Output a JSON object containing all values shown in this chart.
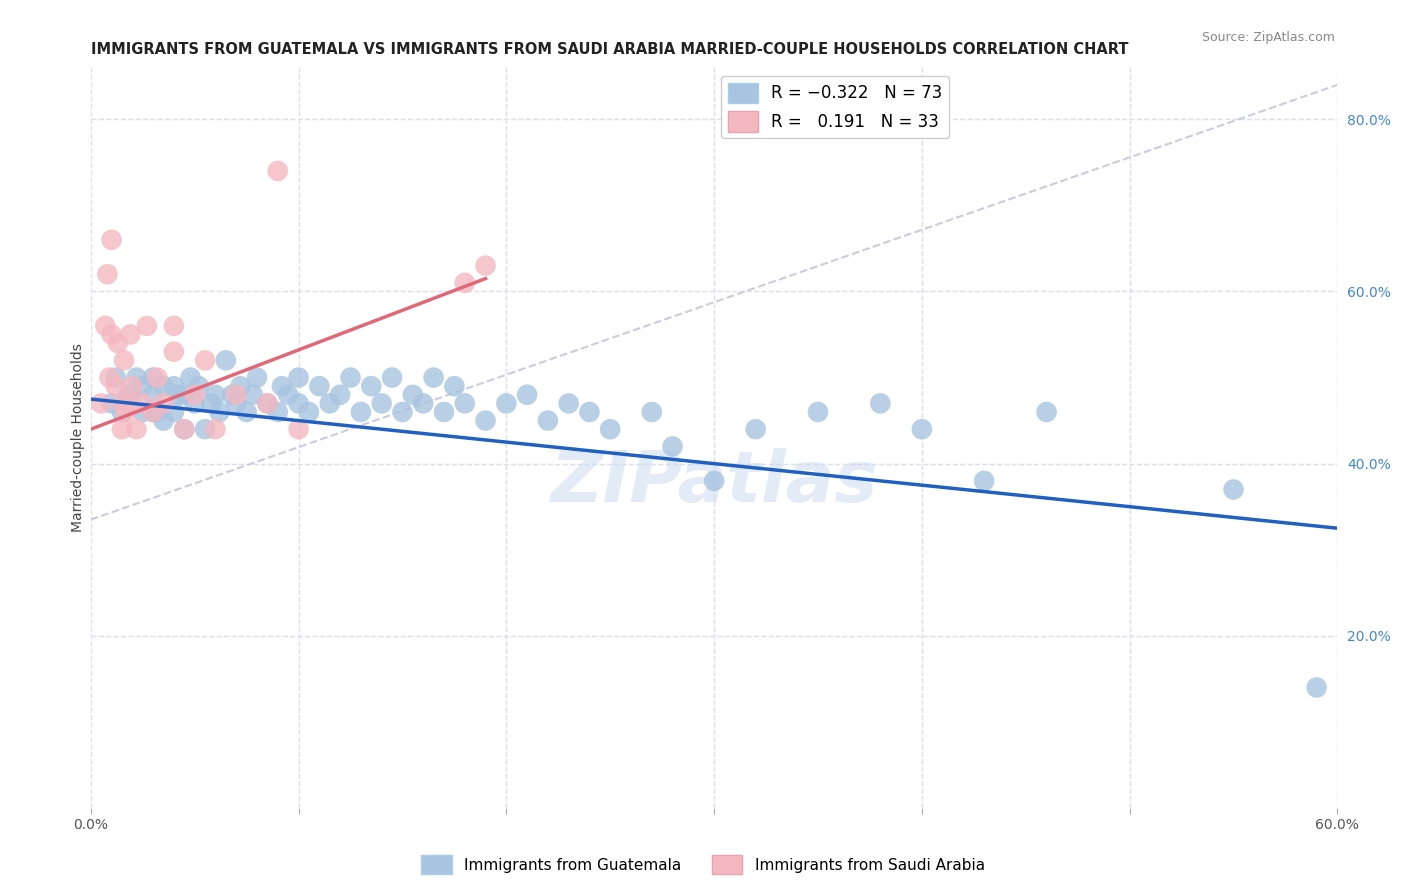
{
  "title": "IMMIGRANTS FROM GUATEMALA VS IMMIGRANTS FROM SAUDI ARABIA MARRIED-COUPLE HOUSEHOLDS CORRELATION CHART",
  "source": "Source: ZipAtlas.com",
  "ylabel": "Married-couple Households",
  "xlim": [
    0.0,
    0.6
  ],
  "ylim": [
    0.0,
    0.86
  ],
  "xticks": [
    0.0,
    0.1,
    0.2,
    0.3,
    0.4,
    0.5,
    0.6
  ],
  "xticklabels": [
    "0.0%",
    "",
    "",
    "",
    "",
    "",
    "60.0%"
  ],
  "yticks_right": [
    0.2,
    0.4,
    0.6,
    0.8
  ],
  "ytick_right_labels": [
    "20.0%",
    "40.0%",
    "60.0%",
    "80.0%"
  ],
  "blue_color": "#a8c4e0",
  "pink_color": "#f4b8c1",
  "blue_line_color": "#2060c0",
  "pink_line_color": "#e06878",
  "diag_line_color": "#ccccdd",
  "background_color": "#ffffff",
  "grid_color": "#ddddee",
  "blue_line_x0": 0.0,
  "blue_line_y0": 0.475,
  "blue_line_x1": 0.6,
  "blue_line_y1": 0.325,
  "pink_line_x0": 0.0,
  "pink_line_y0": 0.44,
  "pink_line_x1": 0.19,
  "pink_line_y1": 0.615,
  "diag_line_x0": 0.0,
  "diag_line_y0": 0.335,
  "diag_line_x1": 0.6,
  "diag_line_y1": 0.84,
  "guatemala_x": [
    0.01,
    0.012,
    0.015,
    0.018,
    0.02,
    0.022,
    0.025,
    0.025,
    0.03,
    0.03,
    0.03,
    0.032,
    0.035,
    0.035,
    0.04,
    0.04,
    0.042,
    0.045,
    0.045,
    0.048,
    0.05,
    0.052,
    0.055,
    0.058,
    0.06,
    0.062,
    0.065,
    0.068,
    0.07,
    0.072,
    0.075,
    0.078,
    0.08,
    0.085,
    0.09,
    0.092,
    0.095,
    0.1,
    0.1,
    0.105,
    0.11,
    0.115,
    0.12,
    0.125,
    0.13,
    0.135,
    0.14,
    0.145,
    0.15,
    0.155,
    0.16,
    0.165,
    0.17,
    0.175,
    0.18,
    0.19,
    0.2,
    0.21,
    0.22,
    0.23,
    0.24,
    0.25,
    0.27,
    0.28,
    0.3,
    0.32,
    0.35,
    0.38,
    0.4,
    0.43,
    0.46,
    0.55,
    0.59
  ],
  "guatemala_y": [
    0.47,
    0.5,
    0.46,
    0.48,
    0.48,
    0.5,
    0.46,
    0.49,
    0.46,
    0.48,
    0.5,
    0.46,
    0.45,
    0.49,
    0.46,
    0.49,
    0.48,
    0.44,
    0.48,
    0.5,
    0.47,
    0.49,
    0.44,
    0.47,
    0.48,
    0.46,
    0.52,
    0.48,
    0.47,
    0.49,
    0.46,
    0.48,
    0.5,
    0.47,
    0.46,
    0.49,
    0.48,
    0.47,
    0.5,
    0.46,
    0.49,
    0.47,
    0.48,
    0.5,
    0.46,
    0.49,
    0.47,
    0.5,
    0.46,
    0.48,
    0.47,
    0.5,
    0.46,
    0.49,
    0.47,
    0.45,
    0.47,
    0.48,
    0.45,
    0.47,
    0.46,
    0.44,
    0.46,
    0.42,
    0.38,
    0.44,
    0.46,
    0.47,
    0.44,
    0.38,
    0.46,
    0.37,
    0.14
  ],
  "saudi_x": [
    0.005,
    0.007,
    0.008,
    0.009,
    0.01,
    0.01,
    0.012,
    0.013,
    0.015,
    0.015,
    0.016,
    0.017,
    0.018,
    0.019,
    0.02,
    0.022,
    0.025,
    0.027,
    0.03,
    0.032,
    0.035,
    0.04,
    0.04,
    0.045,
    0.05,
    0.055,
    0.06,
    0.07,
    0.085,
    0.09,
    0.1,
    0.18,
    0.19
  ],
  "saudi_y": [
    0.47,
    0.56,
    0.62,
    0.5,
    0.55,
    0.66,
    0.49,
    0.54,
    0.44,
    0.47,
    0.52,
    0.46,
    0.47,
    0.55,
    0.49,
    0.44,
    0.47,
    0.56,
    0.46,
    0.5,
    0.47,
    0.53,
    0.56,
    0.44,
    0.48,
    0.52,
    0.44,
    0.48,
    0.47,
    0.74,
    0.44,
    0.61,
    0.63
  ],
  "watermark": "ZIPatlas",
  "legend_fontsize": 12,
  "title_fontsize": 10.5,
  "axis_label_fontsize": 10,
  "tick_fontsize": 10
}
